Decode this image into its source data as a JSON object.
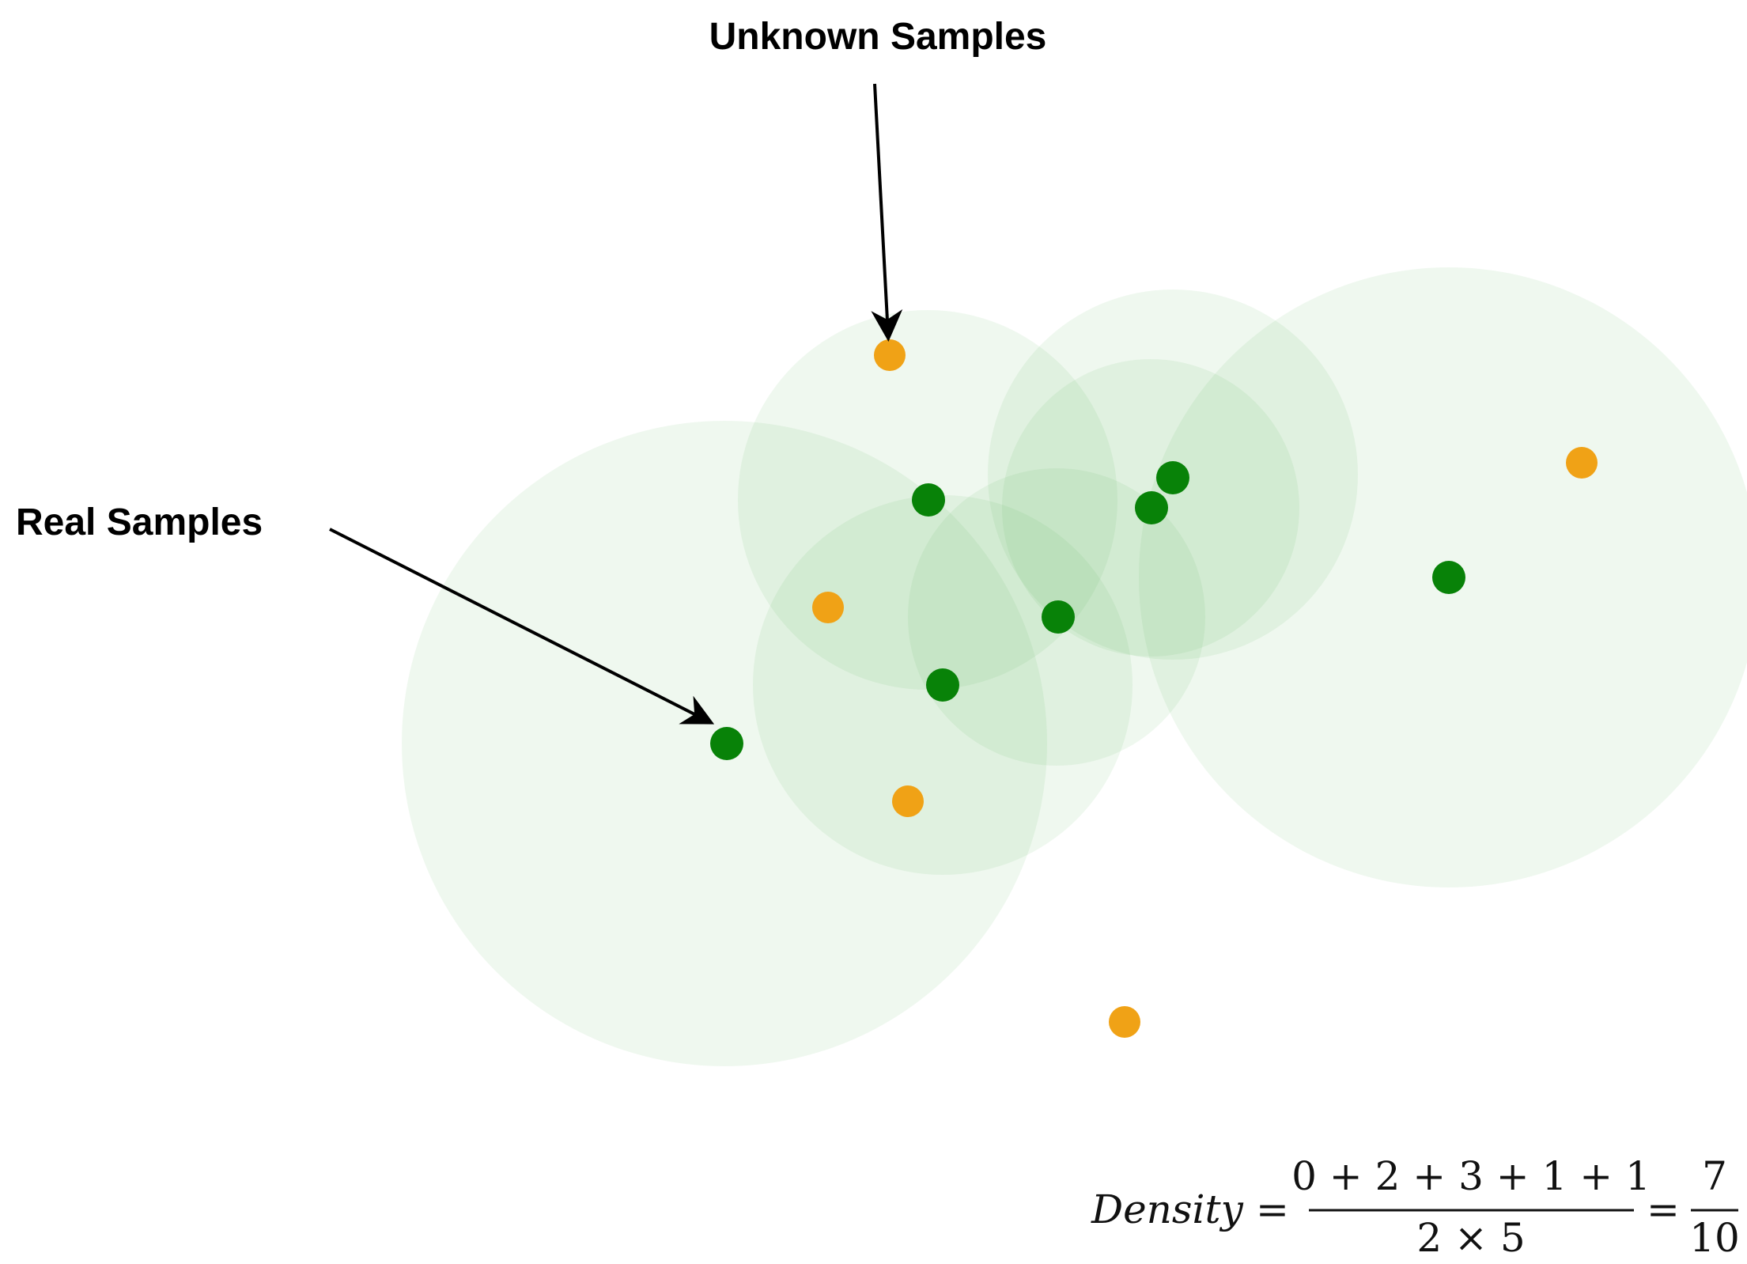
{
  "labels": {
    "unknown": "Unknown Samples",
    "real": "Real Samples"
  },
  "formula": {
    "lhs": "Density",
    "equals": "=",
    "numerator": "0 + 2 + 3 + 1 + 1",
    "denominator": "2 × 5",
    "result_numerator": "7",
    "result_denominator": "10"
  },
  "colors": {
    "real_point": "#088208",
    "unknown_point": "#f0a216",
    "neighborhood": "#4caf50",
    "arrow": "#000000"
  }
}
